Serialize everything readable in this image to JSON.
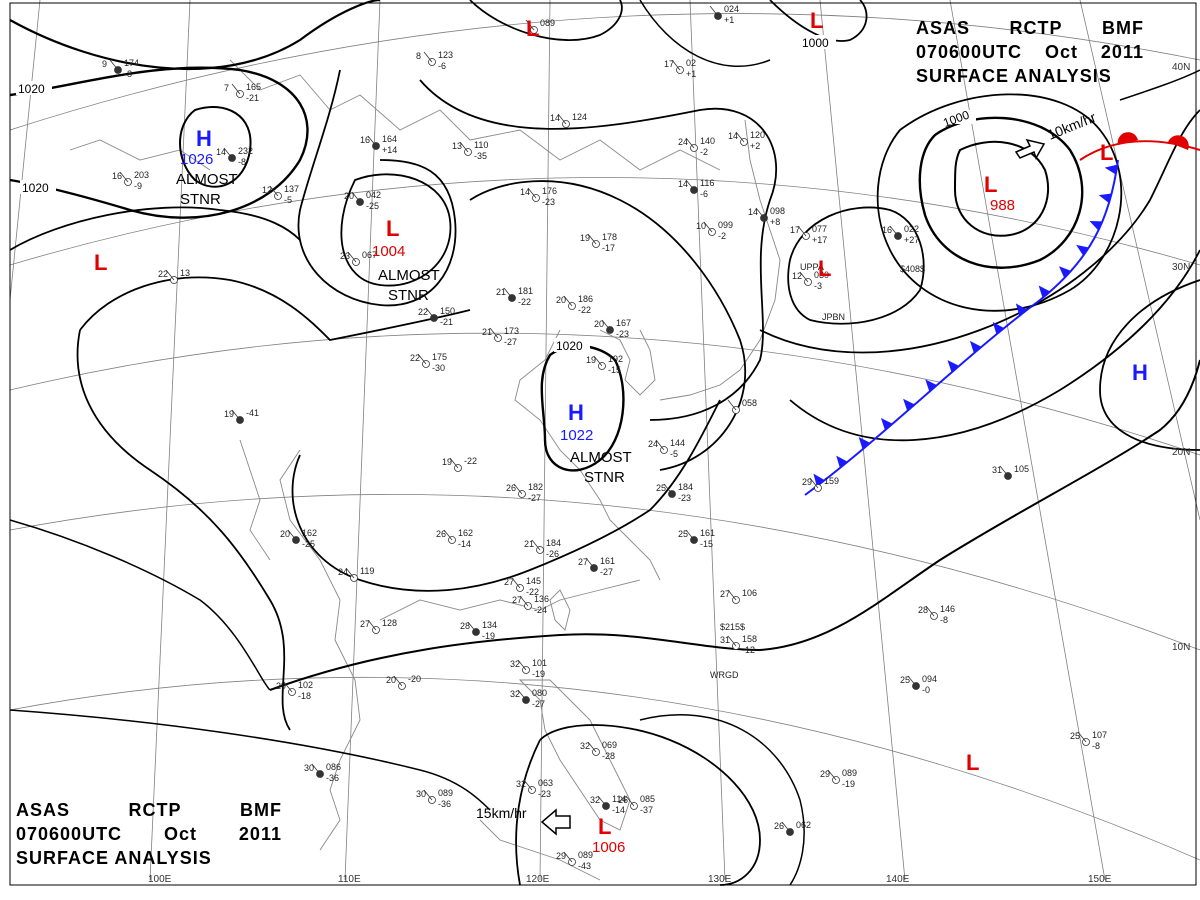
{
  "header": {
    "line1": [
      "ASAS",
      "RCTP",
      "BMF"
    ],
    "line2": [
      "070600UTC",
      "Oct",
      "2011"
    ],
    "line3": "SURFACE  ANALYSIS"
  },
  "colors": {
    "high": "#1a1aff",
    "low": "#e00000",
    "isobar": "#000000",
    "grid": "#808080",
    "coast": "#808080",
    "front_cold": "#1a1aff",
    "front_warm": "#e00000"
  },
  "pressure_systems": [
    {
      "id": "h-north-west",
      "type": "high",
      "letter": "H",
      "value": "1026"
    },
    {
      "id": "h-china",
      "type": "high",
      "letter": "H",
      "value": "1022"
    },
    {
      "id": "h-east",
      "type": "high",
      "letter": "H",
      "value": ""
    },
    {
      "id": "l-mongolia",
      "type": "low",
      "letter": "L",
      "value": "1004"
    },
    {
      "id": "l-west",
      "type": "low",
      "letter": "L",
      "value": ""
    },
    {
      "id": "l-top",
      "type": "low",
      "letter": "L",
      "value": ""
    },
    {
      "id": "l-top-right",
      "type": "low",
      "letter": "L",
      "value": ""
    },
    {
      "id": "l-pacific",
      "type": "low",
      "letter": "L",
      "value": "988"
    },
    {
      "id": "l-japan",
      "type": "low",
      "letter": "L",
      "value": ""
    },
    {
      "id": "l-philippines",
      "type": "low",
      "letter": "L",
      "value": "1006"
    },
    {
      "id": "l-south-east",
      "type": "low",
      "letter": "L",
      "value": ""
    },
    {
      "id": "l-far-right",
      "type": "low",
      "letter": "L",
      "value": ""
    }
  ],
  "isobar_labels": [
    "1020",
    "1020",
    "1020",
    "1000",
    "1000"
  ],
  "annotations": [
    {
      "id": "almost-stnr-1",
      "line1": "ALMOST",
      "line2": "STNR"
    },
    {
      "id": "almost-stnr-2",
      "line1": "ALMOST",
      "line2": "STNR"
    },
    {
      "id": "almost-stnr-3",
      "line1": "ALMOST",
      "line2": "STNR"
    }
  ],
  "motions": [
    {
      "id": "motion-pacific-low",
      "label": "10km/hr"
    },
    {
      "id": "motion-philippines-low",
      "label": "15km/hr"
    }
  ],
  "longitude_labels": [
    "110E",
    "120E",
    "130E",
    "140E",
    "150E"
  ],
  "latitude_labels": [
    "40N",
    "30N",
    "20N",
    "10N"
  ],
  "stations": [
    {
      "t": "9",
      "p": "174",
      "d": "-8"
    },
    {
      "t": "8",
      "p": "123",
      "d": "-6"
    },
    {
      "t": "7",
      "p": "165",
      "d": "-21"
    },
    {
      "t": "14",
      "p": "232",
      "d": "-8"
    },
    {
      "t": "16",
      "p": "203",
      "d": "-9"
    },
    {
      "t": "12",
      "p": "137",
      "d": "-5"
    },
    {
      "t": "16",
      "p": "164",
      "d": "+14"
    },
    {
      "t": "13",
      "p": "110",
      "d": "-35"
    },
    {
      "t": "14",
      "p": "124",
      "d": ""
    },
    {
      "t": "20",
      "p": "042",
      "d": "-25"
    },
    {
      "t": "23",
      "p": "067",
      "d": ""
    },
    {
      "t": "22",
      "p": "13",
      "d": ""
    },
    {
      "t": "22",
      "p": "150",
      "d": "-21"
    },
    {
      "t": "14",
      "p": "176",
      "d": "-23"
    },
    {
      "t": "19",
      "p": "178",
      "d": "-17"
    },
    {
      "t": "21",
      "p": "181",
      "d": "-22"
    },
    {
      "t": "20",
      "p": "186",
      "d": "-22"
    },
    {
      "t": "21",
      "p": "173",
      "d": "-27"
    },
    {
      "t": "20",
      "p": "167",
      "d": "-23"
    },
    {
      "t": "22",
      "p": "175",
      "d": "-30"
    },
    {
      "t": "19",
      "p": "192",
      "d": "-15"
    },
    {
      "t": "19",
      "p": "-41",
      "d": ""
    },
    {
      "t": "19",
      "p": "-22",
      "d": ""
    },
    {
      "t": "26",
      "p": "182",
      "d": "-27"
    },
    {
      "t": "25",
      "p": "184",
      "d": "-23"
    },
    {
      "t": "26",
      "p": "162",
      "d": "-14"
    },
    {
      "t": "21",
      "p": "184",
      "d": "-26"
    },
    {
      "t": "27",
      "p": "161",
      "d": "-27"
    },
    {
      "t": "27",
      "p": "145",
      "d": "-22"
    },
    {
      "t": "27",
      "p": "136",
      "d": "-24"
    },
    {
      "t": "28",
      "p": "134",
      "d": "-19"
    },
    {
      "t": "27",
      "p": "128",
      "d": ""
    },
    {
      "t": "24",
      "p": "119",
      "d": ""
    },
    {
      "t": "20",
      "p": "162",
      "d": "-25"
    },
    {
      "t": "20",
      "p": "-20",
      "d": ""
    },
    {
      "t": "29",
      "p": "102",
      "d": "-18"
    },
    {
      "t": "30",
      "p": "086",
      "d": "-36"
    },
    {
      "t": "30",
      "p": "089",
      "d": "-36"
    },
    {
      "t": "32",
      "p": "101",
      "d": "-19"
    },
    {
      "t": "32",
      "p": "080",
      "d": "-27"
    },
    {
      "t": "32",
      "p": "069",
      "d": "-28"
    },
    {
      "t": "32",
      "p": "063",
      "d": "-23"
    },
    {
      "t": "32",
      "p": "114",
      "d": "-14"
    },
    {
      "t": "29",
      "p": "089",
      "d": "-43"
    },
    {
      "t": "26",
      "p": "085",
      "d": "-37"
    },
    {
      "t": "26",
      "p": "062",
      "d": ""
    },
    {
      "t": "29",
      "p": "089",
      "d": "-19"
    },
    {
      "t": "25",
      "p": "107",
      "d": "-8"
    },
    {
      "t": "25",
      "p": "094",
      "d": "-0"
    },
    {
      "t": "27",
      "p": "106",
      "d": ""
    },
    {
      "t": "31",
      "p": "158",
      "d": "-12"
    },
    {
      "t": "31",
      "p": "105",
      "d": ""
    },
    {
      "t": "29",
      "p": "159",
      "d": ""
    },
    {
      "t": "24",
      "p": "140",
      "d": "-2"
    },
    {
      "t": "14",
      "p": "116",
      "d": "-6"
    },
    {
      "t": "14",
      "p": "120",
      "d": "+2"
    },
    {
      "t": "10",
      "p": "099",
      "d": "-2"
    },
    {
      "t": "14",
      "p": "098",
      "d": "+8"
    },
    {
      "t": "17",
      "p": "077",
      "d": "+17"
    },
    {
      "t": "12",
      "p": "030",
      "d": "-3"
    },
    {
      "t": "16",
      "p": "022",
      "d": "+27"
    },
    {
      "t": "17",
      "p": "02",
      "d": "+1"
    },
    {
      "t": "",
      "p": "089",
      "d": ""
    },
    {
      "t": "",
      "p": "024",
      "d": "+1"
    },
    {
      "t": "",
      "p": "058",
      "d": ""
    },
    {
      "t": "24",
      "p": "144",
      "d": "-5"
    },
    {
      "t": "25",
      "p": "161",
      "d": "-15"
    },
    {
      "t": "28",
      "p": "146",
      "d": "-8"
    },
    {
      "t": "",
      "p": "",
      "d": ""
    }
  ],
  "station_ids": [
    "UPPA",
    "JPBN",
    "WRGD",
    "$408$",
    "$215$"
  ]
}
